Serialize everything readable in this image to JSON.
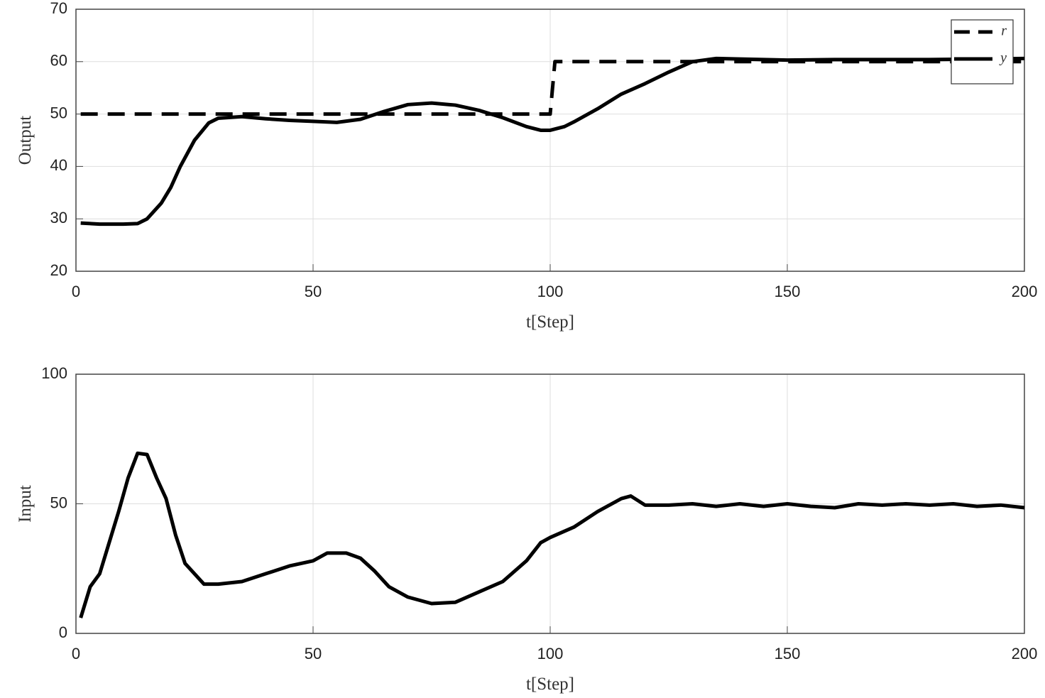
{
  "chart_data": [
    {
      "type": "line",
      "xlabel": "t[Step]",
      "ylabel": "Output",
      "xlim": [
        0,
        200
      ],
      "xticks": [
        0,
        50,
        100,
        150,
        200
      ],
      "ylim": [
        20,
        70
      ],
      "yticks": [
        20,
        30,
        40,
        50,
        60,
        70
      ],
      "grid": true,
      "legend": "northeast",
      "series": [
        {
          "name": "r",
          "color": "#000000",
          "linestyle": "dashed",
          "x": [
            1,
            100,
            101,
            200
          ],
          "values": [
            50,
            50,
            60,
            60
          ]
        },
        {
          "name": "y",
          "color": "#000000",
          "linestyle": "solid",
          "x": [
            1,
            5,
            10,
            13,
            15,
            18,
            20,
            22,
            25,
            28,
            30,
            35,
            40,
            45,
            50,
            55,
            60,
            65,
            70,
            75,
            80,
            85,
            90,
            95,
            98,
            100,
            103,
            105,
            110,
            115,
            120,
            125,
            130,
            135,
            140,
            150,
            160,
            170,
            180,
            190,
            200
          ],
          "values": [
            29.2,
            29,
            29,
            29.1,
            30,
            33,
            36,
            40,
            45,
            48.3,
            49.2,
            49.5,
            49.1,
            48.8,
            48.6,
            48.4,
            49,
            50.5,
            51.8,
            52.1,
            51.7,
            50.7,
            49.3,
            47.6,
            46.9,
            46.9,
            47.6,
            48.5,
            51,
            53.8,
            55.8,
            58,
            60,
            60.6,
            60.5,
            60.3,
            60.4,
            60.4,
            60.4,
            60.5,
            60.6
          ]
        }
      ]
    },
    {
      "type": "line",
      "xlabel": "t[Step]",
      "ylabel": "Input",
      "xlim": [
        0,
        200
      ],
      "xticks": [
        0,
        50,
        100,
        150,
        200
      ],
      "ylim": [
        0,
        100
      ],
      "yticks": [
        0,
        50,
        100
      ],
      "grid": true,
      "series": [
        {
          "color": "#000000",
          "linestyle": "solid",
          "x": [
            1,
            3,
            5,
            7,
            9,
            11,
            13,
            15,
            17,
            19,
            21,
            23,
            25,
            27,
            30,
            35,
            40,
            45,
            50,
            53,
            57,
            60,
            63,
            66,
            70,
            75,
            80,
            85,
            90,
            95,
            98,
            100,
            105,
            110,
            115,
            117,
            120,
            125,
            130,
            135,
            140,
            145,
            150,
            155,
            160,
            165,
            170,
            175,
            180,
            185,
            190,
            195,
            200
          ],
          "values": [
            6,
            18,
            23,
            35,
            47,
            60,
            69.5,
            69,
            60,
            52,
            38,
            27,
            23,
            19,
            19,
            20,
            23,
            26,
            28,
            31,
            31,
            29,
            24,
            18,
            14,
            11.5,
            12,
            16,
            20,
            28,
            35,
            37,
            41,
            47,
            52,
            53,
            49.5,
            49.5,
            50,
            49,
            50,
            49,
            50,
            49,
            48.5,
            50,
            49.5,
            50,
            49.5,
            50,
            49,
            49.5,
            48.5
          ]
        }
      ]
    }
  ]
}
